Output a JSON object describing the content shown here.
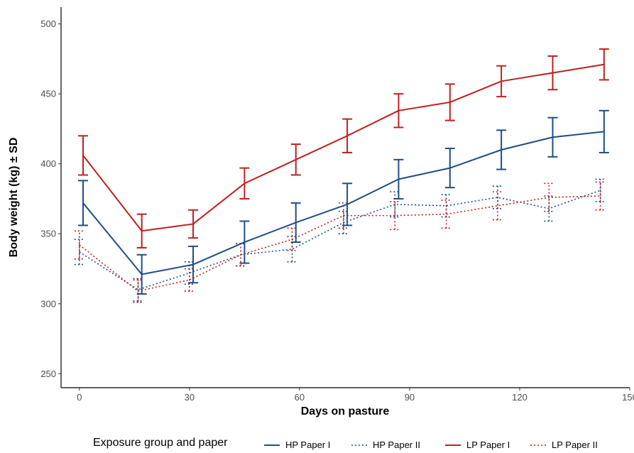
{
  "chart_data": {
    "type": "line",
    "xlabel": "Days on pasture",
    "ylabel": "Body weight (kg) ± SD",
    "xlim": [
      -5,
      150
    ],
    "ylim": [
      240,
      512
    ],
    "xticks": [
      0,
      30,
      60,
      90,
      120,
      150
    ],
    "yticks": [
      250,
      300,
      350,
      400,
      450,
      500
    ],
    "grid": false,
    "legend": {
      "title": "Exposure group and paper",
      "position": "bottom"
    },
    "series": [
      {
        "name": "HP Paper I",
        "color": "#1f4e87",
        "linestyle": "solid",
        "x": [
          1,
          17,
          31,
          45,
          59,
          73,
          87,
          101,
          115,
          129,
          143
        ],
        "y": [
          372,
          321,
          328,
          344,
          358,
          371,
          389,
          397,
          410,
          419,
          423
        ],
        "sd": [
          16,
          14,
          13,
          15,
          14,
          15,
          14,
          14,
          14,
          14,
          15
        ]
      },
      {
        "name": "HP Paper II",
        "color": "#1f4e87",
        "linestyle": "dotted",
        "x": [
          0,
          16,
          30,
          44,
          58,
          72,
          86,
          100,
          114,
          128,
          142
        ],
        "y": [
          337,
          310,
          322,
          335,
          339,
          358,
          371,
          370,
          376,
          368,
          381
        ],
        "sd": [
          9,
          8,
          8,
          8,
          9,
          8,
          9,
          8,
          8,
          9,
          8
        ]
      },
      {
        "name": "LP Paper I",
        "color": "#c0201f",
        "linestyle": "solid",
        "x": [
          1,
          17,
          31,
          45,
          59,
          73,
          87,
          101,
          115,
          129,
          143
        ],
        "y": [
          406,
          352,
          357,
          386,
          403,
          420,
          438,
          444,
          459,
          465,
          471
        ],
        "sd": [
          14,
          12,
          10,
          11,
          11,
          12,
          12,
          13,
          11,
          12,
          11
        ]
      },
      {
        "name": "LP Paper II",
        "color": "#c0201f",
        "linestyle": "dotted",
        "x": [
          0,
          16,
          30,
          44,
          58,
          72,
          86,
          100,
          114,
          128,
          142
        ],
        "y": [
          342,
          309,
          317,
          335,
          346,
          363,
          363,
          364,
          370,
          376,
          377
        ],
        "sd": [
          10,
          8,
          8,
          8,
          8,
          9,
          10,
          10,
          10,
          10,
          10
        ]
      }
    ]
  }
}
